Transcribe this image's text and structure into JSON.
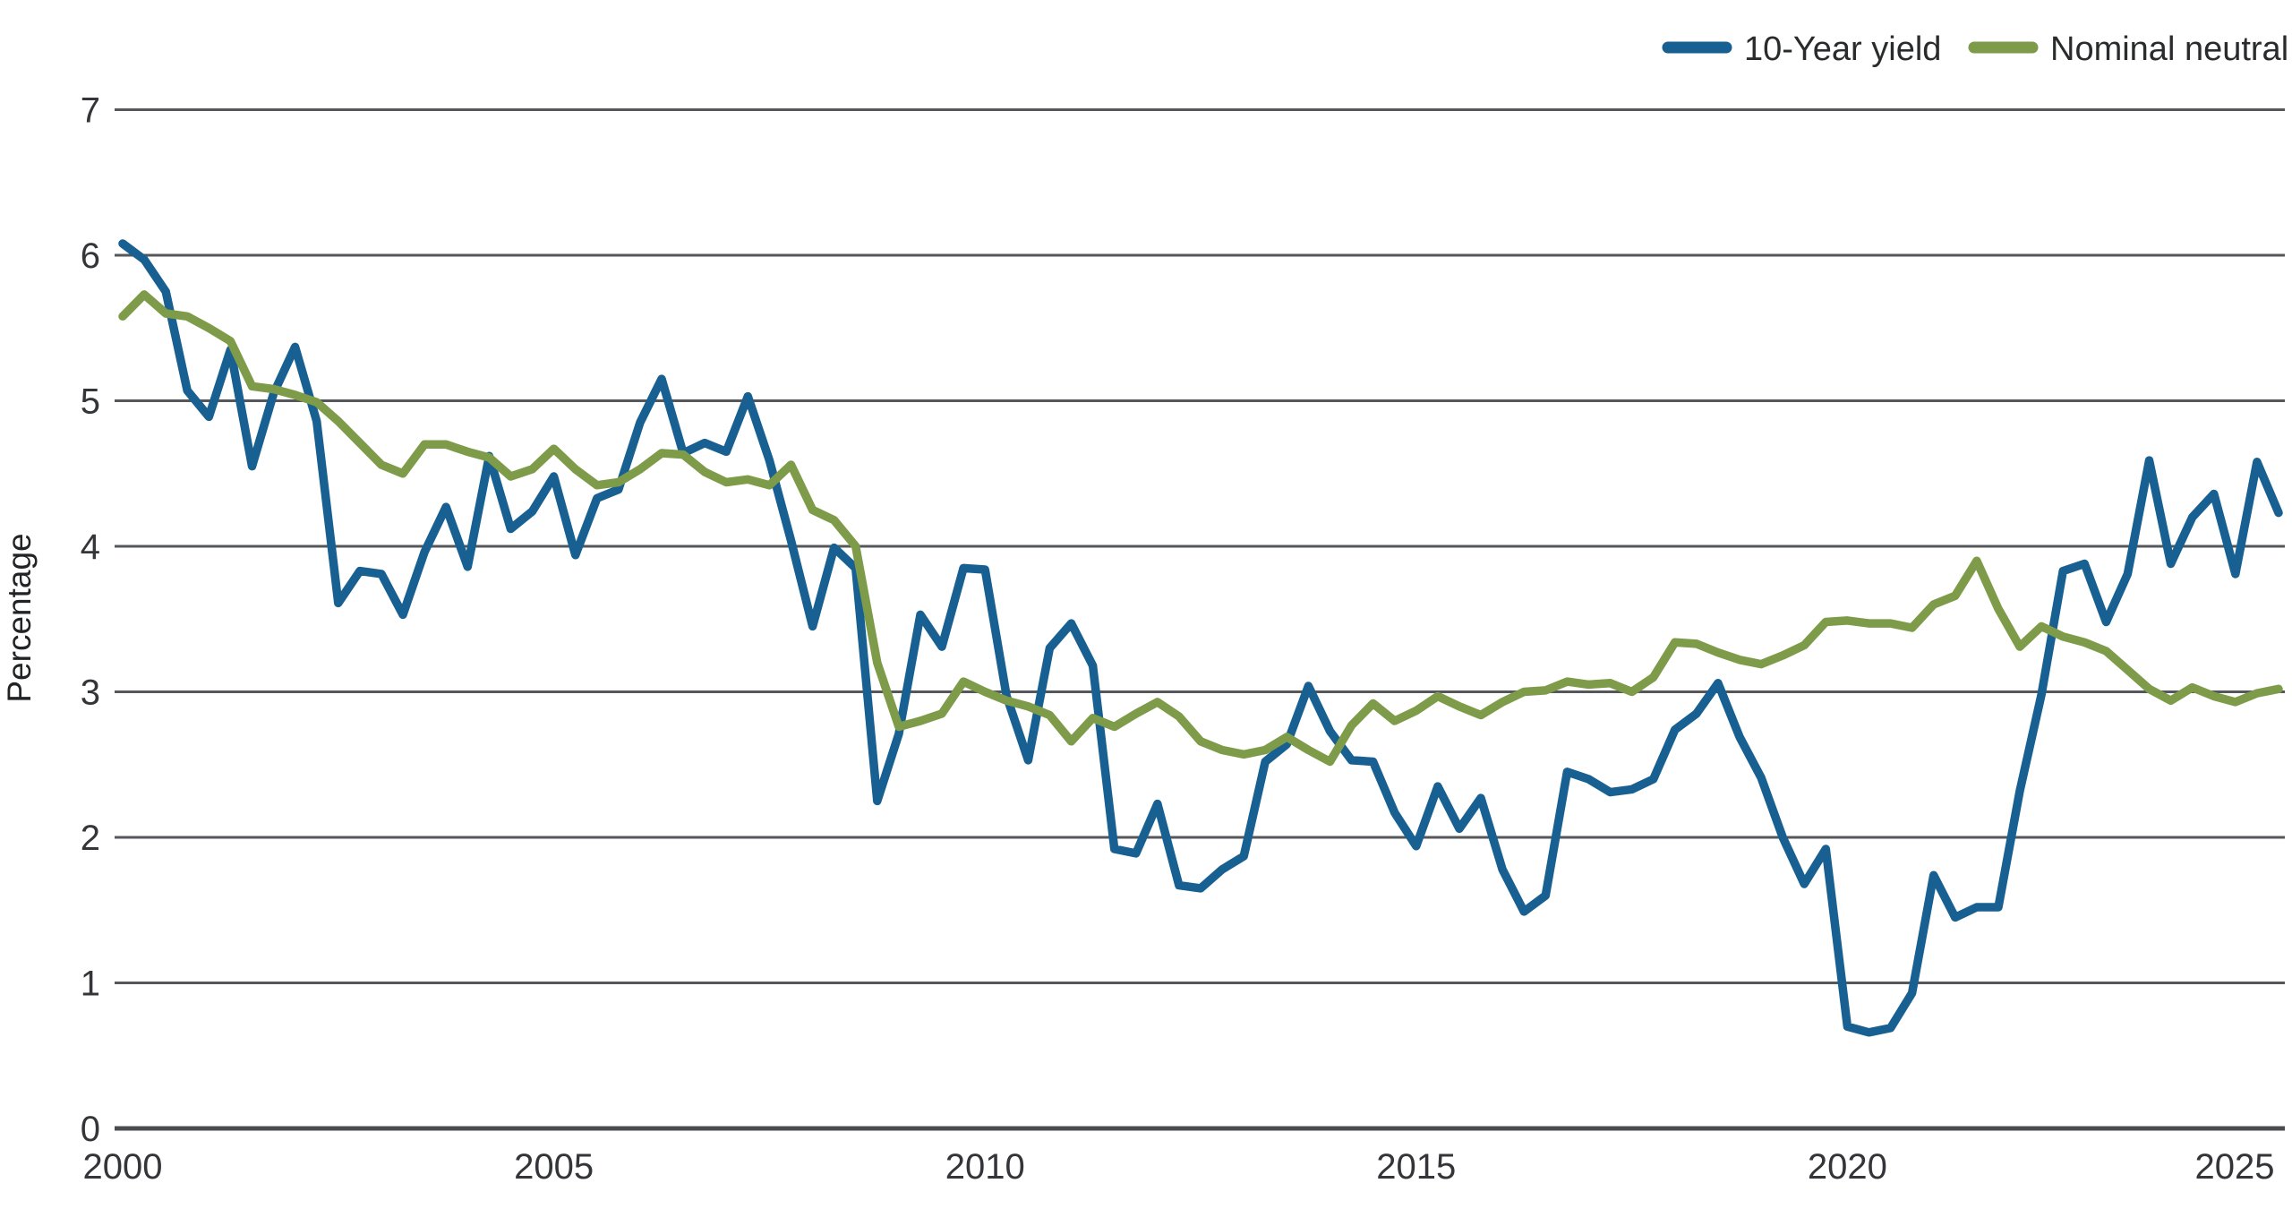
{
  "chart_data": {
    "type": "line",
    "title": "",
    "xlabel": "",
    "ylabel": "Percentage",
    "ylim": [
      0,
      7
    ],
    "yticks": [
      0,
      1,
      2,
      3,
      4,
      5,
      6,
      7
    ],
    "xtick_years": [
      2000,
      2005,
      2010,
      2015,
      2020,
      2025
    ],
    "x_start": "2000 Q1",
    "x_end": "2025 Q1",
    "frequency": "quarterly",
    "grid": "horizontal",
    "legend_position": "top-right",
    "colors": {
      "yield_line": "#176091",
      "neutral_line": "#7d9b48",
      "gridline": "#55575a",
      "axis_line": "#4a4c4f",
      "tick_text": "#333538",
      "label_text": "#222325"
    },
    "series": [
      {
        "name": "10-Year yield",
        "color": "#176091",
        "values": [
          6.08,
          5.97,
          5.75,
          5.07,
          4.89,
          5.35,
          4.55,
          5.05,
          5.37,
          4.86,
          3.61,
          3.83,
          3.81,
          3.53,
          3.96,
          4.27,
          3.86,
          4.62,
          4.12,
          4.24,
          4.48,
          3.94,
          4.33,
          4.39,
          4.85,
          5.15,
          4.64,
          4.71,
          4.65,
          5.03,
          4.59,
          4.04,
          3.45,
          3.99,
          3.85,
          2.25,
          2.71,
          3.53,
          3.31,
          3.85,
          3.84,
          2.97,
          2.53,
          3.3,
          3.47,
          3.18,
          1.92,
          1.89,
          2.23,
          1.67,
          1.65,
          1.78,
          1.87,
          2.52,
          2.64,
          3.04,
          2.73,
          2.53,
          2.52,
          2.17,
          1.94,
          2.35,
          2.06,
          2.27,
          1.78,
          1.49,
          1.6,
          2.45,
          2.4,
          2.31,
          2.33,
          2.4,
          2.74,
          2.85,
          3.06,
          2.69,
          2.41,
          2.0,
          1.68,
          1.92,
          0.7,
          0.66,
          0.69,
          0.93,
          1.74,
          1.45,
          1.52,
          1.52,
          2.32,
          2.98,
          3.83,
          3.88,
          3.48,
          3.81,
          4.59,
          3.88,
          4.2,
          4.36,
          3.81,
          4.58,
          4.23
        ]
      },
      {
        "name": "Nominal neutral",
        "color": "#7d9b48",
        "values": [
          5.58,
          5.73,
          5.6,
          5.58,
          5.5,
          5.41,
          5.1,
          5.08,
          5.04,
          4.99,
          4.86,
          4.71,
          4.56,
          4.5,
          4.7,
          4.7,
          4.65,
          4.61,
          4.48,
          4.53,
          4.67,
          4.53,
          4.42,
          4.44,
          4.53,
          4.64,
          4.63,
          4.51,
          4.44,
          4.46,
          4.42,
          4.56,
          4.25,
          4.18,
          4.0,
          3.2,
          2.76,
          2.8,
          2.85,
          3.07,
          3.0,
          2.94,
          2.9,
          2.84,
          2.66,
          2.82,
          2.76,
          2.85,
          2.93,
          2.83,
          2.66,
          2.6,
          2.57,
          2.6,
          2.69,
          2.6,
          2.52,
          2.77,
          2.92,
          2.8,
          2.87,
          2.97,
          2.9,
          2.84,
          2.93,
          3.0,
          3.01,
          3.07,
          3.05,
          3.06,
          3.0,
          3.1,
          3.34,
          3.33,
          3.27,
          3.22,
          3.19,
          3.25,
          3.32,
          3.48,
          3.49,
          3.47,
          3.47,
          3.44,
          3.6,
          3.66,
          3.9,
          3.57,
          3.31,
          3.45,
          3.38,
          3.34,
          3.28,
          3.15,
          3.02,
          2.94,
          3.03,
          2.97,
          2.93,
          2.99,
          3.02
        ]
      }
    ]
  },
  "legend": {
    "item1_label": "10-Year yield",
    "item2_label": "Nominal neutral"
  },
  "axes": {
    "y_axis_title": "Percentage"
  }
}
